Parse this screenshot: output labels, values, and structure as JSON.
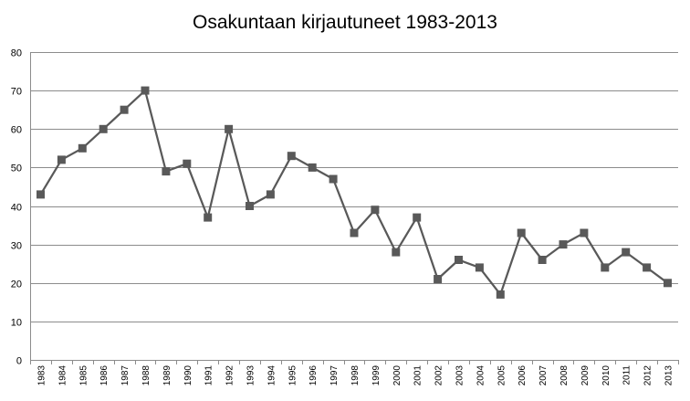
{
  "chart_data": {
    "type": "line",
    "title": "Osakuntaan kirjautuneet 1983-2013",
    "xlabel": "",
    "ylabel": "",
    "ylim": [
      0,
      80
    ],
    "yticks": [
      "0",
      "10",
      "20",
      "30",
      "40",
      "50",
      "60",
      "70",
      "80"
    ],
    "grid": true,
    "legend": "none",
    "colors": {
      "line": "#595959",
      "marker": "#595959",
      "grid": "#8c8c8c",
      "axis": "#8c8c8c"
    },
    "categories": [
      "1983",
      "1984",
      "1985",
      "1986",
      "1987",
      "1988",
      "1989",
      "1990",
      "1991",
      "1992",
      "1993",
      "1994",
      "1995",
      "1996",
      "1997",
      "1998",
      "1999",
      "2000",
      "2001",
      "2002",
      "2003",
      "2004",
      "2005",
      "2006",
      "2007",
      "2008",
      "2009",
      "2010",
      "2011",
      "2012",
      "2013"
    ],
    "series": [
      {
        "values": [
          43,
          52,
          55,
          60,
          65,
          70,
          49,
          51,
          37,
          60,
          40,
          43,
          53,
          50,
          47,
          33,
          39,
          28,
          37,
          21,
          26,
          24,
          17,
          33,
          26,
          30,
          33,
          24,
          28,
          24,
          20
        ]
      }
    ]
  }
}
